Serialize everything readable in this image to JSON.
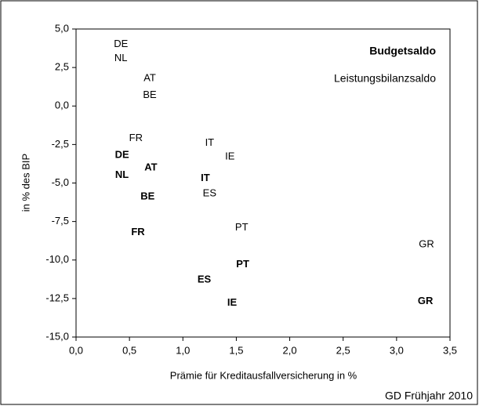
{
  "chart_data": {
    "type": "scatter",
    "xlabel": "Prämie für Kreditausfallversicherung in %",
    "ylabel": "in % des BIP",
    "footer": "GD Frühjahr 2010",
    "xlim": [
      0,
      3.5
    ],
    "ylim": [
      -15,
      5
    ],
    "xticks": [
      {
        "value": 0,
        "label": "0,0"
      },
      {
        "value": 0.5,
        "label": "0,5"
      },
      {
        "value": 1,
        "label": "1,0"
      },
      {
        "value": 1.5,
        "label": "1,5"
      },
      {
        "value": 2,
        "label": "2,0"
      },
      {
        "value": 2.5,
        "label": "2,5"
      },
      {
        "value": 3,
        "label": "3,0"
      },
      {
        "value": 3.5,
        "label": "3,5"
      }
    ],
    "yticks": [
      {
        "value": 5,
        "label": "5,0"
      },
      {
        "value": 2.5,
        "label": "2,5"
      },
      {
        "value": 0,
        "label": "0,0"
      },
      {
        "value": -2.5,
        "label": "-2,5"
      },
      {
        "value": -5,
        "label": "-5,0"
      },
      {
        "value": -7.5,
        "label": "-7,5"
      },
      {
        "value": -10,
        "label": "-10,0"
      },
      {
        "value": -12.5,
        "label": "-12,5"
      },
      {
        "value": -15,
        "label": "-15,0"
      }
    ],
    "series": [
      {
        "name": "Budgetsaldo",
        "bold": true,
        "color": "#000000",
        "labels": [
          "DE",
          "NL",
          "AT",
          "BE",
          "IT",
          "FR",
          "PT",
          "ES",
          "IE",
          "GR"
        ],
        "x": [
          0.43,
          0.43,
          0.7,
          0.67,
          1.21,
          0.58,
          1.56,
          1.2,
          1.46,
          3.27
        ],
        "values": [
          -3.2,
          -4.5,
          -4.0,
          -5.9,
          -4.7,
          -8.2,
          -10.3,
          -11.3,
          -12.8,
          -12.7
        ]
      },
      {
        "name": "Leistungsbilanzsaldo",
        "bold": false,
        "color": "#000000",
        "labels": [
          "DE",
          "NL",
          "AT",
          "BE",
          "FR",
          "IT",
          "IE",
          "ES",
          "PT",
          "GR"
        ],
        "x": [
          0.42,
          0.42,
          0.69,
          0.69,
          0.56,
          1.25,
          1.44,
          1.25,
          1.55,
          3.28
        ],
        "values": [
          4.0,
          3.1,
          1.8,
          0.7,
          -2.1,
          -2.4,
          -3.3,
          -5.7,
          -7.9,
          -9.0
        ]
      }
    ]
  }
}
